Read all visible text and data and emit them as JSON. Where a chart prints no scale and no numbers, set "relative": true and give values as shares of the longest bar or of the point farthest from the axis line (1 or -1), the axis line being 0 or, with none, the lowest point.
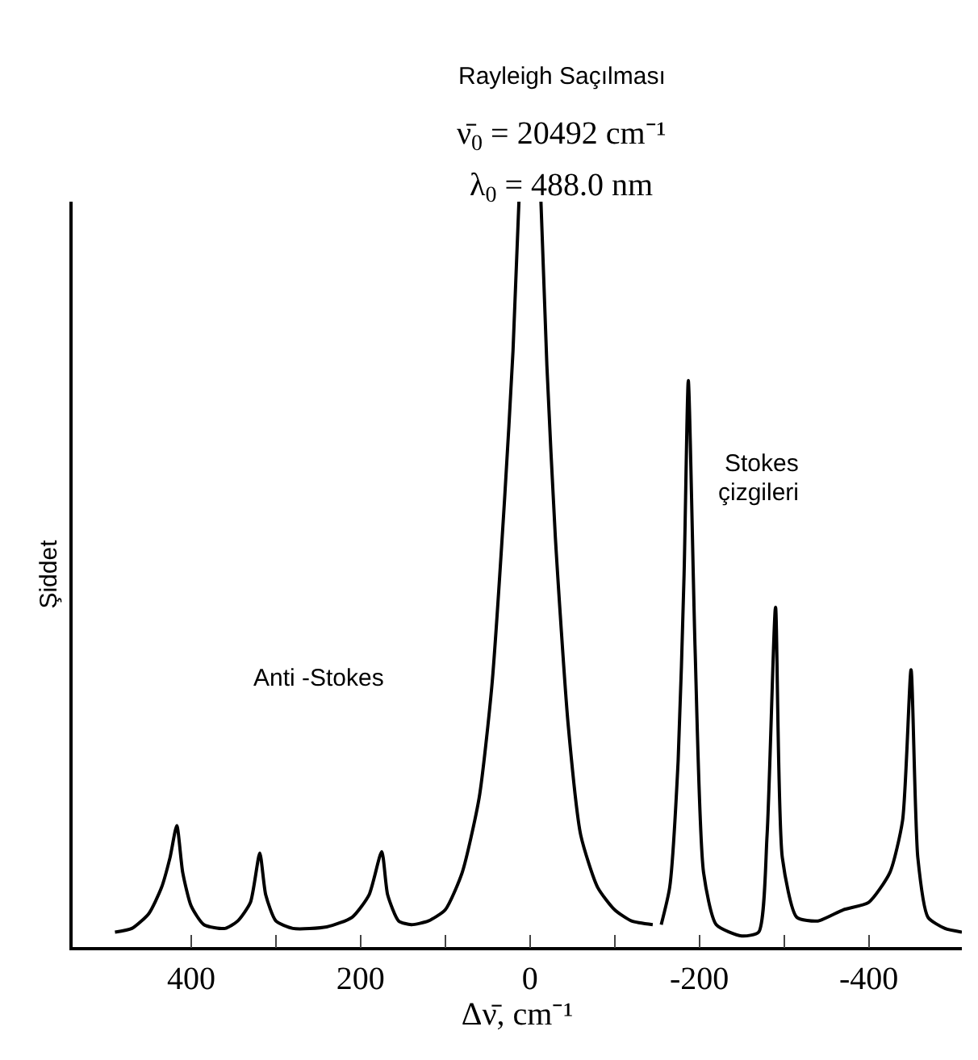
{
  "chart_data": {
    "type": "line",
    "relative": true,
    "xlabel": "Δν̄, cm⁻¹",
    "ylabel": "Şiddet",
    "xlim": [
      540,
      -510
    ],
    "xticks": [
      400,
      {
        "value": 300,
        "label": null
      },
      200,
      {
        "value": 100,
        "label": null
      },
      0,
      {
        "value": -100,
        "label": null
      },
      -200,
      {
        "value": -300,
        "label": null
      },
      -400
    ],
    "x": [
      490,
      470,
      450,
      435,
      425,
      417,
      410,
      400,
      385,
      360,
      345,
      330,
      319,
      312,
      300,
      280,
      240,
      210,
      190,
      175,
      168,
      155,
      140,
      120,
      100,
      80,
      60,
      45,
      30,
      20,
      13,
      0,
      -13,
      -20,
      -30,
      -45,
      -60,
      -80,
      -100,
      -120,
      -145,
      -150,
      -155,
      -165,
      -175,
      -182,
      -187,
      -195,
      -205,
      -220,
      -250,
      -270,
      -280,
      -290,
      -298,
      -315,
      -340,
      -370,
      -400,
      -425,
      -440,
      -450,
      -458,
      -470,
      -490,
      -510
    ],
    "series": [
      {
        "color": "#000000",
        "values": [
          0.02,
          0.025,
          0.045,
          0.08,
          0.12,
          0.163,
          0.1,
          0.055,
          0.03,
          0.025,
          0.035,
          0.06,
          0.126,
          0.07,
          0.035,
          0.025,
          0.027,
          0.04,
          0.07,
          0.128,
          0.07,
          0.035,
          0.03,
          0.035,
          0.05,
          0.1,
          0.2,
          0.35,
          0.6,
          0.8,
          1,
          null,
          1,
          0.78,
          0.55,
          0.3,
          0.15,
          0.08,
          0.05,
          0.035,
          0.03,
          null,
          0.03,
          0.08,
          0.25,
          0.5,
          0.76,
          0.4,
          0.1,
          0.03,
          0.015,
          0.02,
          0.15,
          0.456,
          0.12,
          0.04,
          0.035,
          0.05,
          0.06,
          0.1,
          0.17,
          0.372,
          0.12,
          0.04,
          0.025,
          0.02
        ]
      }
    ],
    "annotations": [
      "Rayleigh Saçılması",
      "ν̄$_{0}$ = 20492 cm⁻¹",
      "λ$_{0}$ = 488.0 nm",
      "Anti -Stokes",
      "Stokes",
      "çizgileri"
    ],
    "legend": false,
    "marker": "none",
    "line_style": "solid"
  }
}
